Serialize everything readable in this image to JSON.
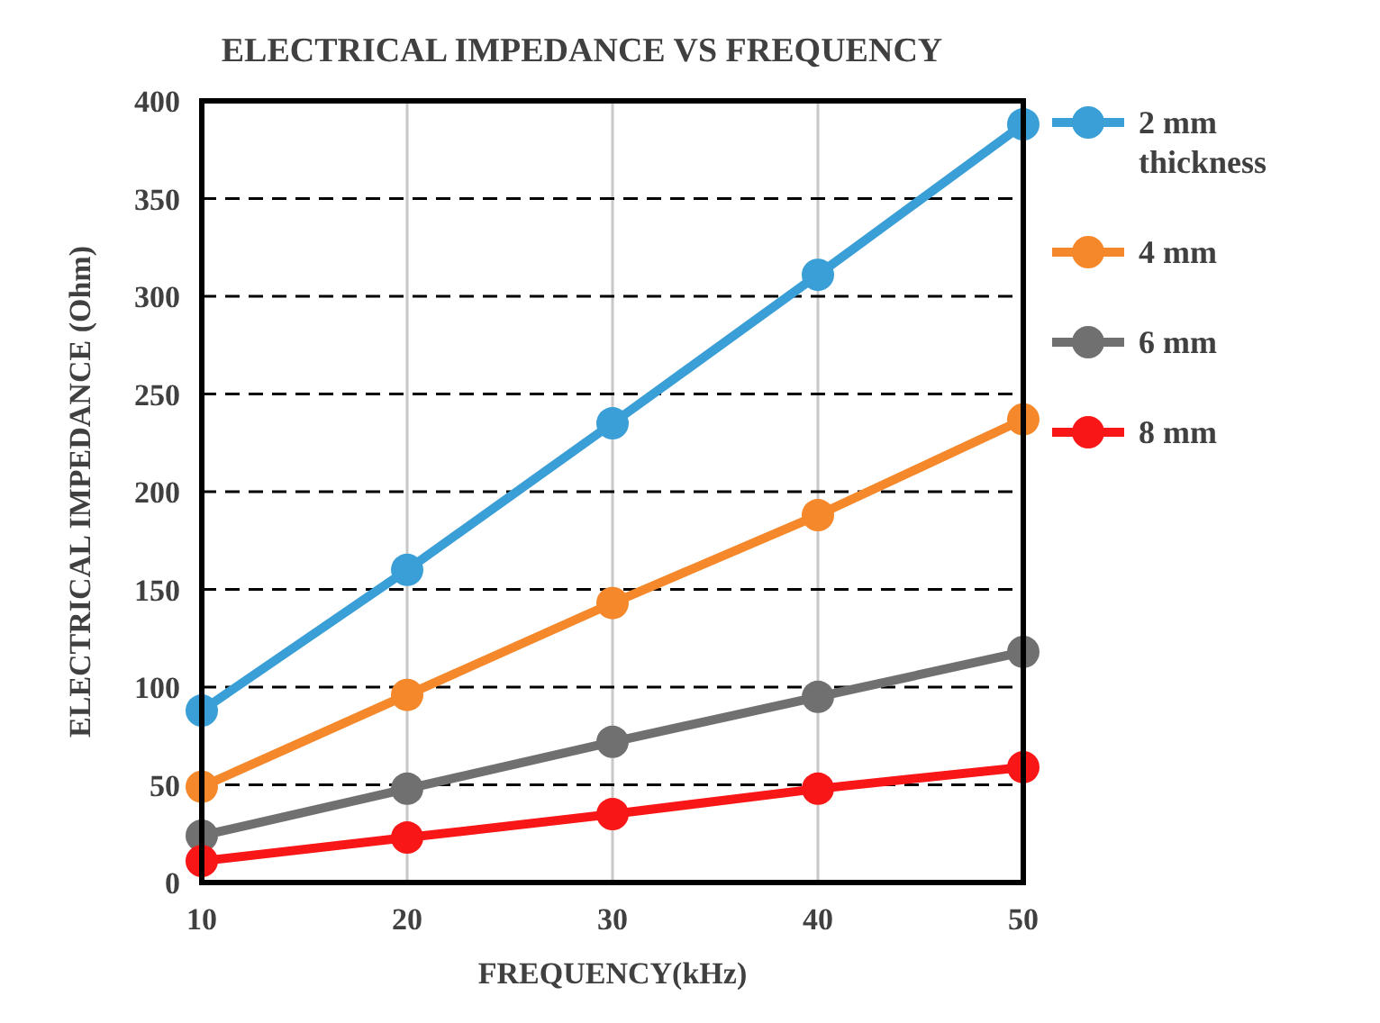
{
  "chart_data": {
    "type": "line",
    "title": "ELECTRICAL IMPEDANCE VS FREQUENCY",
    "xlabel": "FREQUENCY(kHz)",
    "ylabel": "ELECTRICAL IMPEDANCE (Ohm)",
    "x": [
      10,
      20,
      30,
      40,
      50
    ],
    "xlim": [
      10,
      50
    ],
    "xticks": [
      10,
      20,
      30,
      40,
      50
    ],
    "ylim": [
      0,
      400
    ],
    "yticks": [
      0,
      50,
      100,
      150,
      200,
      250,
      300,
      350,
      400
    ],
    "grid": true,
    "legend": "right",
    "marker": "circle",
    "line_style": "solid",
    "series": [
      {
        "name": "2 mm thickness",
        "color": "#3a9fd6",
        "values": [
          88,
          160,
          235,
          311,
          388
        ]
      },
      {
        "name": "4 mm",
        "color": "#f5882a",
        "values": [
          49,
          96,
          143,
          188,
          237
        ]
      },
      {
        "name": "6 mm",
        "color": "#707070",
        "values": [
          24,
          48,
          72,
          95,
          118
        ]
      },
      {
        "name": "8 mm",
        "color": "#f81616",
        "values": [
          11,
          23,
          35,
          48,
          59
        ]
      }
    ]
  }
}
